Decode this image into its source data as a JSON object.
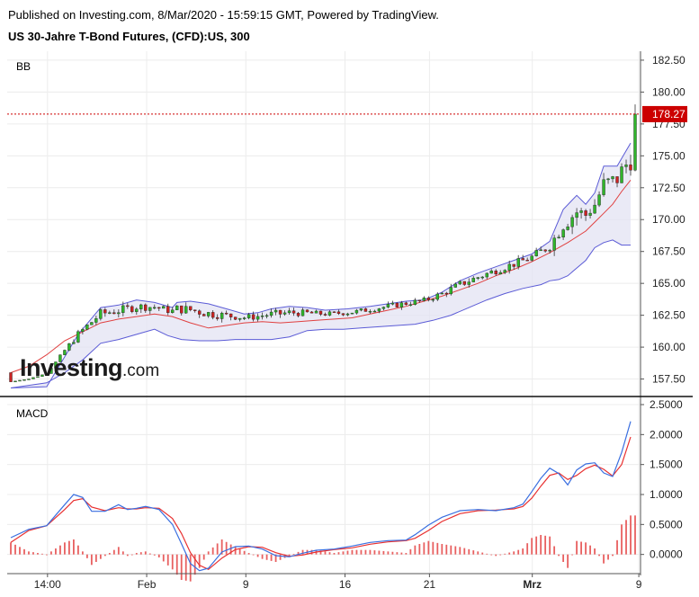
{
  "header": {
    "published": "Published on Investing.com, 8/Mar/2020 - 15:59:15 GMT, Powered by TradingView.",
    "title": "US 30-Jahre T-Bond Futures, (CFD):US, 300"
  },
  "logo": {
    "word": "Investing",
    "suffix": ".com"
  },
  "colors": {
    "up": "#2fb52a",
    "down": "#cc2222",
    "band": "#5b5bd6",
    "bandFill": "#e3e3f3",
    "basis": "#e04040",
    "macd": "#3a6fe0",
    "signal": "#e83030",
    "hist": "#e86060",
    "price_line": "#cc0000"
  },
  "chart_data": [
    {
      "type": "candlestick",
      "indicator": "BB",
      "y_ticks": [
        "182.50",
        "180.00",
        "177.50",
        "175.00",
        "172.50",
        "170.00",
        "167.50",
        "165.00",
        "162.50",
        "160.00",
        "157.50"
      ],
      "ylim": [
        156.2,
        183.2
      ],
      "last_price": "178.27",
      "last_price_value": 178.27,
      "x_labels": [
        "14:00",
        "Feb",
        "9",
        "16",
        "21",
        "Mrz",
        "9"
      ],
      "x_labels_bold": [
        "Mrz"
      ],
      "bar_count": 140,
      "upper_band": [
        [
          0,
          156.8
        ],
        [
          8,
          156.9
        ],
        [
          15,
          161.0
        ],
        [
          20,
          163.1
        ],
        [
          24,
          163.3
        ],
        [
          28,
          163.7
        ],
        [
          32,
          163.5
        ],
        [
          36,
          163.1
        ],
        [
          37,
          163.5
        ],
        [
          40,
          163.6
        ],
        [
          44,
          163.4
        ],
        [
          48,
          163.0
        ],
        [
          52,
          162.6
        ],
        [
          55,
          162.7
        ],
        [
          58,
          163.0
        ],
        [
          62,
          163.2
        ],
        [
          66,
          163.1
        ],
        [
          70,
          162.9
        ],
        [
          75,
          163.0
        ],
        [
          80,
          163.2
        ],
        [
          84,
          163.4
        ],
        [
          88,
          163.6
        ],
        [
          92,
          163.7
        ],
        [
          96,
          164.3
        ],
        [
          100,
          165.2
        ],
        [
          104,
          165.8
        ],
        [
          108,
          166.3
        ],
        [
          112,
          166.8
        ],
        [
          116,
          167.3
        ],
        [
          120,
          168.3
        ],
        [
          123,
          170.8
        ],
        [
          126,
          171.9
        ],
        [
          128,
          171.2
        ],
        [
          130,
          172.1
        ],
        [
          132,
          174.2
        ],
        [
          135,
          174.2
        ],
        [
          137,
          175.4
        ],
        [
          138,
          176.0
        ]
      ],
      "lower_band": [
        [
          0,
          156.8
        ],
        [
          8,
          157.2
        ],
        [
          12,
          158.0
        ],
        [
          16,
          159.0
        ],
        [
          20,
          160.3
        ],
        [
          24,
          160.6
        ],
        [
          28,
          161.0
        ],
        [
          32,
          161.4
        ],
        [
          35,
          160.9
        ],
        [
          38,
          160.6
        ],
        [
          42,
          160.5
        ],
        [
          46,
          160.5
        ],
        [
          50,
          160.6
        ],
        [
          54,
          160.6
        ],
        [
          58,
          160.6
        ],
        [
          62,
          160.8
        ],
        [
          66,
          161.3
        ],
        [
          70,
          161.4
        ],
        [
          74,
          161.4
        ],
        [
          78,
          161.5
        ],
        [
          82,
          161.6
        ],
        [
          86,
          161.7
        ],
        [
          90,
          161.8
        ],
        [
          94,
          162.1
        ],
        [
          98,
          162.5
        ],
        [
          102,
          163.1
        ],
        [
          106,
          163.7
        ],
        [
          110,
          164.2
        ],
        [
          114,
          164.6
        ],
        [
          118,
          164.9
        ],
        [
          120,
          165.2
        ],
        [
          122,
          165.3
        ],
        [
          124,
          165.6
        ],
        [
          126,
          166.2
        ],
        [
          128,
          166.8
        ],
        [
          130,
          167.8
        ],
        [
          132,
          168.2
        ],
        [
          134,
          168.4
        ],
        [
          136,
          168.0
        ],
        [
          138,
          168.0
        ]
      ],
      "basis": [
        [
          0,
          158.0
        ],
        [
          4,
          158.5
        ],
        [
          8,
          159.4
        ],
        [
          12,
          160.5
        ],
        [
          16,
          161.2
        ],
        [
          20,
          161.9
        ],
        [
          24,
          162.2
        ],
        [
          28,
          162.4
        ],
        [
          32,
          162.6
        ],
        [
          36,
          162.4
        ],
        [
          40,
          161.9
        ],
        [
          44,
          161.5
        ],
        [
          48,
          161.7
        ],
        [
          52,
          161.9
        ],
        [
          56,
          162.0
        ],
        [
          60,
          161.9
        ],
        [
          64,
          162.0
        ],
        [
          68,
          162.1
        ],
        [
          72,
          162.2
        ],
        [
          76,
          162.3
        ],
        [
          80,
          162.6
        ],
        [
          84,
          162.9
        ],
        [
          88,
          163.2
        ],
        [
          92,
          163.6
        ],
        [
          96,
          164.0
        ],
        [
          100,
          164.5
        ],
        [
          104,
          165.0
        ],
        [
          108,
          165.6
        ],
        [
          112,
          166.1
        ],
        [
          116,
          166.7
        ],
        [
          120,
          167.4
        ],
        [
          124,
          168.2
        ],
        [
          128,
          169.1
        ],
        [
          130,
          169.8
        ],
        [
          132,
          170.5
        ],
        [
          134,
          171.2
        ],
        [
          136,
          172.2
        ],
        [
          138,
          173.1
        ]
      ]
    },
    {
      "type": "macd",
      "indicator": "MACD",
      "y_ticks": [
        "2.5000",
        "2.0000",
        "1.5000",
        "1.0000",
        "0.5000",
        "0.0000"
      ],
      "ylim": [
        -0.32,
        2.62
      ],
      "macd": [
        [
          0,
          0.28
        ],
        [
          4,
          0.42
        ],
        [
          8,
          0.48
        ],
        [
          12,
          0.83
        ],
        [
          14,
          1.0
        ],
        [
          16,
          0.95
        ],
        [
          18,
          0.72
        ],
        [
          21,
          0.72
        ],
        [
          24,
          0.83
        ],
        [
          26,
          0.75
        ],
        [
          28,
          0.77
        ],
        [
          30,
          0.8
        ],
        [
          33,
          0.75
        ],
        [
          36,
          0.5
        ],
        [
          38,
          0.18
        ],
        [
          40,
          -0.15
        ],
        [
          42,
          -0.27
        ],
        [
          44,
          -0.23
        ],
        [
          47,
          0.04
        ],
        [
          50,
          0.13
        ],
        [
          53,
          0.14
        ],
        [
          56,
          0.09
        ],
        [
          59,
          -0.02
        ],
        [
          62,
          -0.04
        ],
        [
          65,
          0.02
        ],
        [
          68,
          0.07
        ],
        [
          72,
          0.09
        ],
        [
          76,
          0.14
        ],
        [
          80,
          0.2
        ],
        [
          84,
          0.23
        ],
        [
          88,
          0.24
        ],
        [
          90,
          0.33
        ],
        [
          93,
          0.49
        ],
        [
          96,
          0.62
        ],
        [
          100,
          0.73
        ],
        [
          104,
          0.75
        ],
        [
          108,
          0.73
        ],
        [
          112,
          0.78
        ],
        [
          114,
          0.84
        ],
        [
          116,
          1.05
        ],
        [
          118,
          1.27
        ],
        [
          120,
          1.44
        ],
        [
          122,
          1.35
        ],
        [
          124,
          1.16
        ],
        [
          126,
          1.41
        ],
        [
          128,
          1.51
        ],
        [
          130,
          1.53
        ],
        [
          132,
          1.36
        ],
        [
          134,
          1.3
        ],
        [
          136,
          1.7
        ],
        [
          138,
          2.22
        ]
      ],
      "signal": [
        [
          0,
          0.2
        ],
        [
          4,
          0.4
        ],
        [
          8,
          0.48
        ],
        [
          12,
          0.75
        ],
        [
          14,
          0.9
        ],
        [
          16,
          0.93
        ],
        [
          18,
          0.79
        ],
        [
          21,
          0.73
        ],
        [
          24,
          0.78
        ],
        [
          26,
          0.76
        ],
        [
          28,
          0.76
        ],
        [
          30,
          0.78
        ],
        [
          33,
          0.77
        ],
        [
          36,
          0.6
        ],
        [
          38,
          0.35
        ],
        [
          40,
          0.03
        ],
        [
          42,
          -0.18
        ],
        [
          44,
          -0.25
        ],
        [
          47,
          -0.06
        ],
        [
          50,
          0.08
        ],
        [
          53,
          0.13
        ],
        [
          56,
          0.12
        ],
        [
          59,
          0.03
        ],
        [
          62,
          -0.03
        ],
        [
          65,
          -0.01
        ],
        [
          68,
          0.04
        ],
        [
          72,
          0.08
        ],
        [
          76,
          0.11
        ],
        [
          80,
          0.17
        ],
        [
          84,
          0.21
        ],
        [
          88,
          0.23
        ],
        [
          90,
          0.27
        ],
        [
          93,
          0.4
        ],
        [
          96,
          0.55
        ],
        [
          100,
          0.68
        ],
        [
          104,
          0.73
        ],
        [
          108,
          0.74
        ],
        [
          112,
          0.76
        ],
        [
          114,
          0.8
        ],
        [
          116,
          0.94
        ],
        [
          118,
          1.14
        ],
        [
          120,
          1.32
        ],
        [
          122,
          1.36
        ],
        [
          124,
          1.25
        ],
        [
          126,
          1.32
        ],
        [
          128,
          1.43
        ],
        [
          130,
          1.49
        ],
        [
          132,
          1.42
        ],
        [
          134,
          1.31
        ],
        [
          136,
          1.5
        ],
        [
          138,
          1.96
        ]
      ]
    }
  ]
}
